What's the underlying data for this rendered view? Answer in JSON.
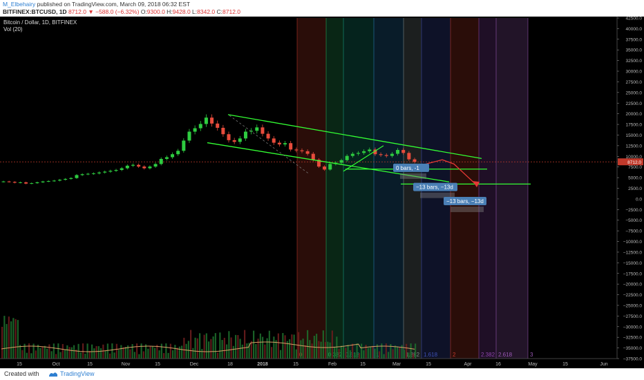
{
  "header": {
    "author": "M_Elbehairy",
    "published": "published on TradingView.com, March 09, 2018 06:32 EST",
    "symbol": "BITFINEX:BTCUSD, 1D",
    "last": "8712.0",
    "change": "−588.0 (−6.32%)",
    "o_label": "O:",
    "o_value": "9300.0",
    "h_label": "H:",
    "h_value": "9428.0",
    "l_label": "L:",
    "l_value": "8342.0",
    "c_label": "C:",
    "c_value": "8712.0"
  },
  "legend": {
    "title": "Bitcoin / Dollar, 1D, BITFINEX",
    "volume": "Vol (20)"
  },
  "footer": {
    "created": "Created with",
    "brand": "TradingView"
  },
  "colors": {
    "up": "#2ecc40",
    "down": "#e74c3c",
    "channel": "#33ff33",
    "price_line": "#c0392b",
    "vol_ma": "#d9a066"
  },
  "chart_data": {
    "type": "candlestick",
    "y_ticks": [
      "42500.0",
      "40000.0",
      "37500.0",
      "35000.0",
      "32500.0",
      "30000.0",
      "27500.0",
      "25000.0",
      "22500.0",
      "20000.0",
      "17500.0",
      "15000.0",
      "12500.0",
      "10000.0",
      "7500.0",
      "5000.0",
      "2500.0",
      "0.0",
      "−2500.0",
      "−5000.0",
      "−7500.0",
      "−10000.0",
      "−12500.0",
      "−15000.0",
      "−17500.0",
      "−20000.0",
      "−22500.0",
      "−25000.0",
      "−27500.0",
      "−30000.0",
      "−32500.0",
      "−35000.0",
      "−37500.0"
    ],
    "ylim": [
      -37500,
      42500
    ],
    "x_ticks": [
      "15",
      "Oct",
      "15",
      "Nov",
      "15",
      "Dec",
      "18",
      "2018",
      "15",
      "Feb",
      "15",
      "Mar",
      "15",
      "Apr",
      "16",
      "May",
      "15",
      "Jun"
    ],
    "price_tag": "8712.0",
    "price_level": 8712,
    "close_prices": [
      4100,
      4000,
      3800,
      3900,
      3600,
      3700,
      3900,
      4100,
      4200,
      4300,
      4500,
      4700,
      4900,
      5600,
      5800,
      5900,
      6000,
      6200,
      6400,
      6600,
      6800,
      7200,
      7800,
      8000,
      7600,
      7200,
      7600,
      8200,
      9400,
      9800,
      10500,
      11300,
      13700,
      15800,
      16600,
      17600,
      19100,
      17700,
      16700,
      15200,
      13800,
      13400,
      14200,
      15800,
      16000,
      16800,
      15300,
      14200,
      13200,
      12800,
      13100,
      11600,
      11400,
      11200,
      10600,
      9200,
      7600,
      6900,
      8200,
      8500,
      9100,
      10100,
      10600,
      10800,
      11200,
      11600,
      10500,
      10300,
      10100,
      10600,
      11500,
      10800,
      9300,
      8712
    ],
    "channel_upper": [
      [
        19800,
        0
      ],
      [
        9500,
        1
      ]
    ],
    "channel_lower": [
      [
        13200,
        0
      ],
      [
        4000,
        1
      ]
    ],
    "support_lines": [
      7000,
      3500
    ],
    "fib_time_labels": [
      "0",
      "0.382",
      "0.618",
      "1",
      "1.382",
      "1.618",
      "2",
      "2.382",
      "2.618",
      "3"
    ],
    "range_labels": [
      "0 bars, -1",
      "−13 bars, −13d",
      "−13 bars, −13d"
    ]
  }
}
